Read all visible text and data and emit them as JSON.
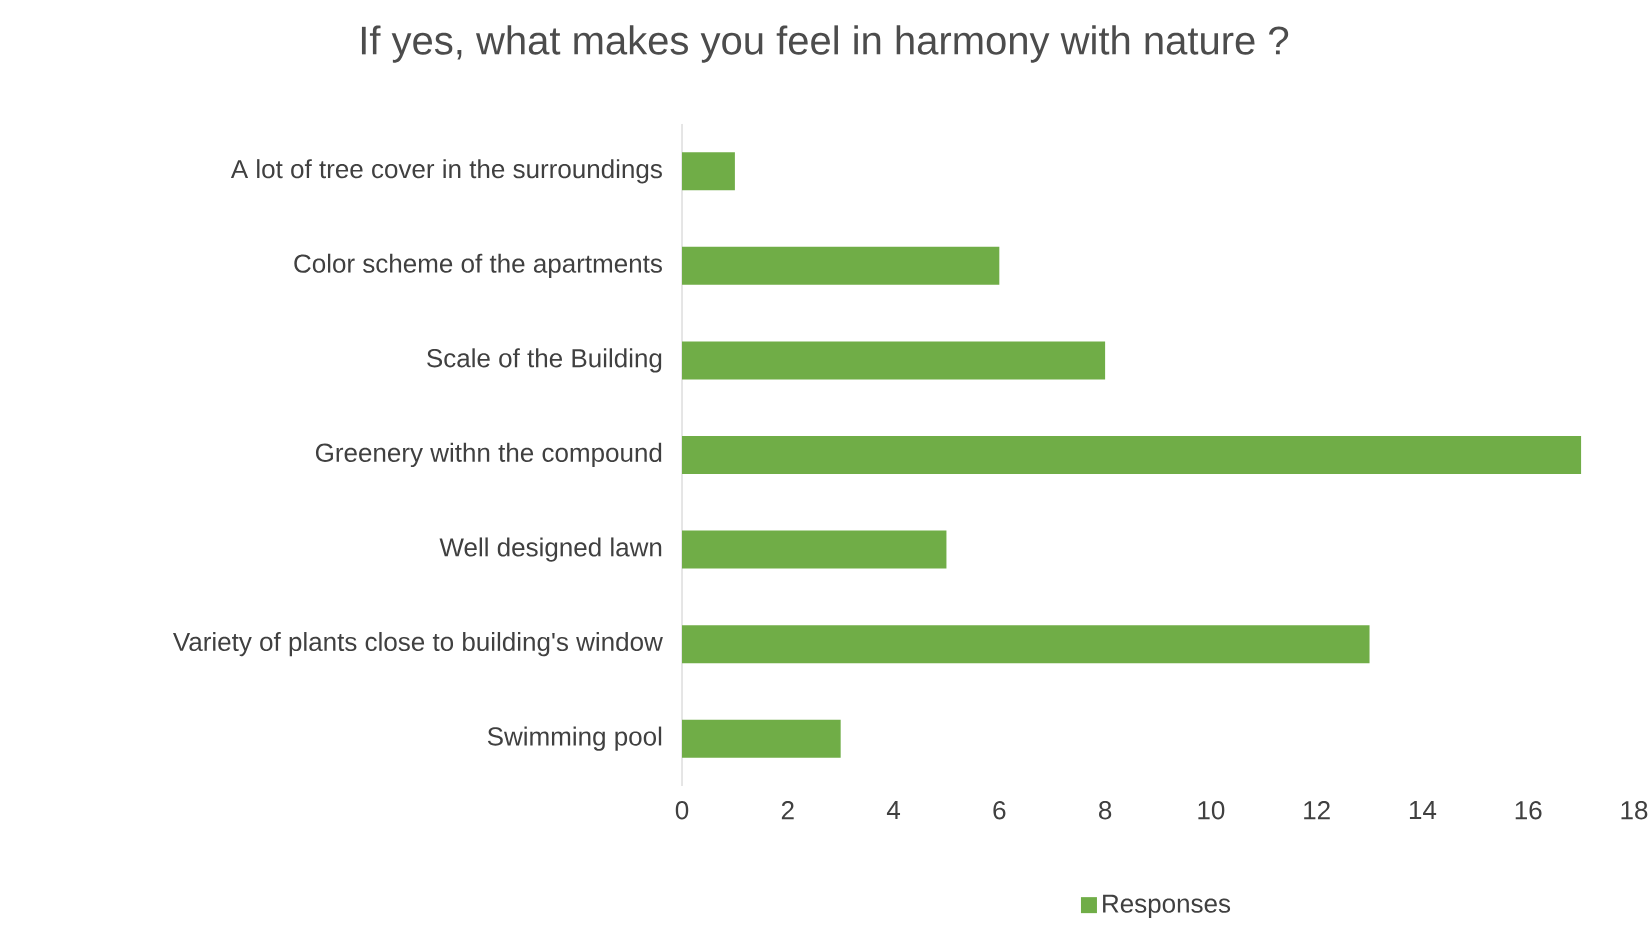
{
  "chart_data": {
    "type": "bar",
    "orientation": "horizontal",
    "title": "If yes, what makes you feel in harmony with nature ?",
    "categories": [
      "A lot of tree cover in the surroundings",
      "Color scheme of the apartments",
      "Scale of the Building",
      "Greenery withn the compound",
      "Well designed lawn",
      "Variety of plants close to building's window",
      "Swimming pool"
    ],
    "series": [
      {
        "name": "Responses",
        "color": "#70ad47",
        "values": [
          1,
          6,
          8,
          17,
          5,
          13,
          3
        ]
      }
    ],
    "xlim": [
      0,
      18
    ],
    "xticks": [
      0,
      2,
      4,
      6,
      8,
      10,
      12,
      14,
      16,
      18
    ],
    "legend": "bottom"
  }
}
